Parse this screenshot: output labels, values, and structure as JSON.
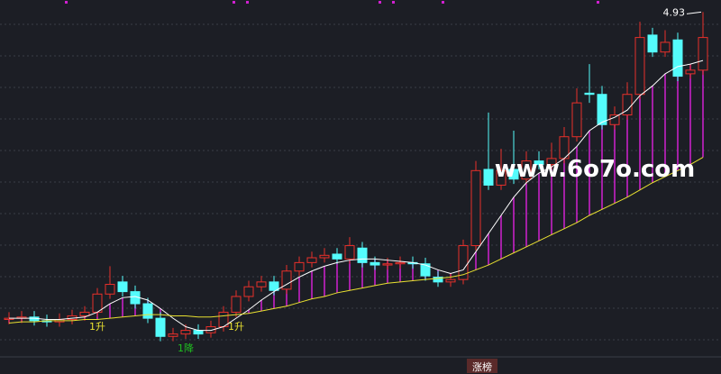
{
  "chart_data": {
    "type": "candlestick",
    "ylim": [
      2.2,
      5.0
    ],
    "up_color": "#e8302a",
    "down_color": "#54fcfc",
    "open": [
      2.39,
      2.4,
      2.41,
      2.38,
      2.37,
      2.39,
      2.42,
      2.45,
      2.6,
      2.7,
      2.62,
      2.52,
      2.4,
      2.25,
      2.27,
      2.3,
      2.28,
      2.33,
      2.45,
      2.58,
      2.66,
      2.7,
      2.64,
      2.79,
      2.86,
      2.9,
      2.93,
      2.89,
      2.98,
      2.86,
      2.84,
      2.85,
      2.86,
      2.85,
      2.74,
      2.7,
      2.72,
      3.0,
      3.63,
      3.5,
      3.63,
      3.55,
      3.7,
      3.67,
      3.72,
      3.9,
      4.26,
      4.25,
      4.0,
      4.08,
      4.25,
      4.74,
      4.6,
      4.7,
      4.42,
      4.45
    ],
    "high": [
      2.45,
      2.46,
      2.46,
      2.43,
      2.44,
      2.47,
      2.5,
      2.65,
      2.83,
      2.75,
      2.67,
      2.57,
      2.45,
      2.32,
      2.35,
      2.35,
      2.38,
      2.5,
      2.63,
      2.71,
      2.75,
      2.75,
      2.84,
      2.91,
      2.95,
      2.98,
      2.98,
      3.07,
      3.03,
      2.91,
      2.9,
      2.91,
      2.91,
      2.9,
      2.79,
      2.77,
      3.05,
      3.7,
      4.1,
      3.8,
      3.95,
      3.78,
      3.78,
      3.85,
      3.98,
      4.3,
      4.5,
      4.32,
      4.15,
      4.35,
      4.85,
      4.8,
      4.78,
      4.76,
      4.5,
      4.93
    ],
    "low": [
      2.35,
      2.36,
      2.34,
      2.33,
      2.33,
      2.35,
      2.38,
      2.41,
      2.56,
      2.58,
      2.48,
      2.36,
      2.21,
      2.21,
      2.23,
      2.23,
      2.24,
      2.29,
      2.41,
      2.54,
      2.62,
      2.59,
      2.6,
      2.75,
      2.82,
      2.86,
      2.85,
      2.85,
      2.82,
      2.8,
      2.8,
      2.81,
      2.81,
      2.71,
      2.66,
      2.66,
      2.68,
      2.96,
      3.46,
      3.46,
      3.51,
      3.51,
      3.63,
      3.63,
      3.68,
      3.86,
      4.18,
      3.96,
      3.96,
      4.04,
      4.21,
      4.56,
      4.56,
      4.36,
      4.38,
      4.41
    ],
    "close": [
      2.4,
      2.41,
      2.38,
      2.37,
      2.39,
      2.42,
      2.45,
      2.6,
      2.68,
      2.62,
      2.52,
      2.4,
      2.25,
      2.27,
      2.3,
      2.27,
      2.33,
      2.45,
      2.58,
      2.66,
      2.7,
      2.63,
      2.79,
      2.86,
      2.9,
      2.92,
      2.89,
      3.0,
      2.86,
      2.84,
      2.85,
      2.86,
      2.85,
      2.75,
      2.7,
      2.72,
      3.0,
      3.62,
      3.5,
      3.62,
      3.55,
      3.7,
      3.67,
      3.72,
      3.9,
      4.18,
      4.25,
      4.0,
      4.08,
      4.25,
      4.72,
      4.6,
      4.68,
      4.4,
      4.45,
      4.72
    ],
    "lines": [
      {
        "color": "#ffffff",
        "values": [
          2.4,
          2.4,
          2.4,
          2.39,
          2.39,
          2.4,
          2.41,
          2.45,
          2.52,
          2.57,
          2.58,
          2.55,
          2.48,
          2.4,
          2.33,
          2.3,
          2.3,
          2.33,
          2.4,
          2.47,
          2.55,
          2.62,
          2.68,
          2.74,
          2.79,
          2.83,
          2.86,
          2.88,
          2.89,
          2.89,
          2.88,
          2.87,
          2.86,
          2.84,
          2.8,
          2.77,
          2.8,
          2.95,
          3.1,
          3.25,
          3.4,
          3.52,
          3.6,
          3.65,
          3.72,
          3.82,
          3.95,
          4.02,
          4.06,
          4.12,
          4.24,
          4.32,
          4.42,
          4.48,
          4.5,
          4.53
        ]
      },
      {
        "color": "#e8e030",
        "values": [
          2.36,
          2.37,
          2.37,
          2.38,
          2.38,
          2.38,
          2.39,
          2.39,
          2.4,
          2.41,
          2.42,
          2.43,
          2.43,
          2.42,
          2.42,
          2.41,
          2.41,
          2.42,
          2.43,
          2.44,
          2.46,
          2.48,
          2.5,
          2.53,
          2.56,
          2.58,
          2.61,
          2.63,
          2.65,
          2.67,
          2.69,
          2.7,
          2.71,
          2.72,
          2.73,
          2.74,
          2.76,
          2.8,
          2.84,
          2.89,
          2.94,
          2.99,
          3.04,
          3.09,
          3.14,
          3.19,
          3.25,
          3.3,
          3.35,
          3.4,
          3.46,
          3.52,
          3.57,
          3.62,
          3.67,
          3.73
        ]
      }
    ],
    "band_color": "#d020d0",
    "signals": [
      null,
      null,
      null,
      null,
      null,
      null,
      null,
      "1升",
      null,
      null,
      null,
      null,
      null,
      null,
      "1降",
      null,
      null,
      null,
      "1升",
      null,
      null,
      null,
      null,
      null,
      null,
      null,
      null,
      null,
      null,
      null,
      null,
      null,
      null,
      null,
      null,
      null,
      null,
      null,
      null,
      null,
      null,
      null,
      null,
      null,
      null,
      null,
      null,
      null,
      null,
      null,
      null,
      null,
      null,
      null,
      null,
      null
    ],
    "watermark": "www.6o7o.com",
    "tab": "涨榜"
  }
}
